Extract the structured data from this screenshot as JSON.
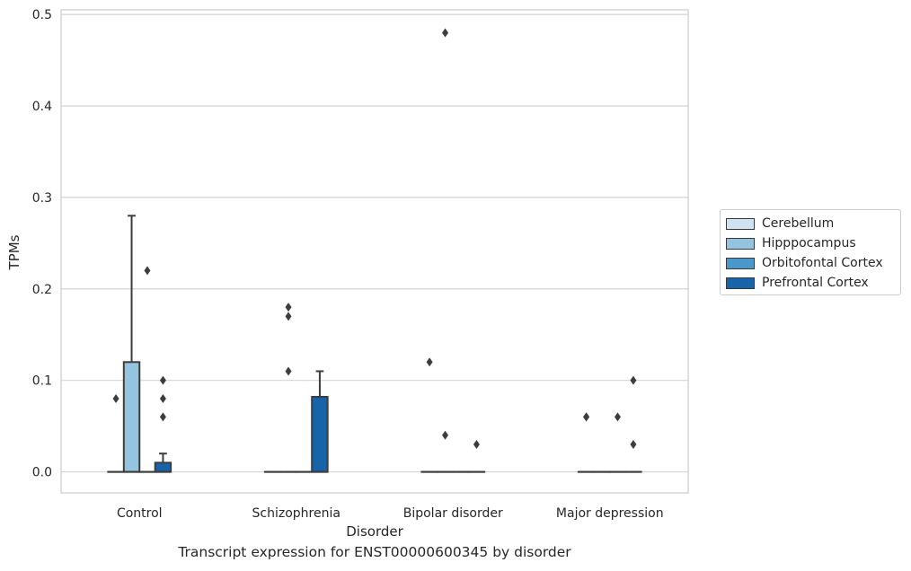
{
  "chart_data": {
    "type": "box",
    "title": "",
    "caption": "Transcript expression for ENST00000600345 by disorder",
    "xlabel": "Disorder",
    "ylabel": "TPMs",
    "ylim": [
      -0.023,
      0.505
    ],
    "yticks": [
      "0.0",
      "0.1",
      "0.2",
      "0.3",
      "0.4",
      "0.5"
    ],
    "ytick_values": [
      0,
      0.1,
      0.2,
      0.3,
      0.4,
      0.5
    ],
    "grid": "horizontal",
    "legend_position": "right",
    "categories": [
      "Control",
      "Schizophrenia",
      "Bipolar disorder",
      "Major depression"
    ],
    "series": [
      {
        "name": "Cerebellum",
        "color": "#d0e1f2",
        "boxes": [
          {
            "q1": 0,
            "median": 0,
            "q3": 0,
            "whisker_low": 0,
            "whisker_high": 0,
            "outliers": [
              0.08
            ]
          },
          {
            "q1": 0,
            "median": 0,
            "q3": 0,
            "whisker_low": 0,
            "whisker_high": 0,
            "outliers": []
          },
          {
            "q1": 0,
            "median": 0,
            "q3": 0,
            "whisker_low": 0,
            "whisker_high": 0,
            "outliers": [
              0.12
            ]
          },
          {
            "q1": 0,
            "median": 0,
            "q3": 0,
            "whisker_low": 0,
            "whisker_high": 0,
            "outliers": [
              0.06,
              0.06
            ]
          }
        ]
      },
      {
        "name": "Hipppocampus",
        "color": "#94c4df",
        "boxes": [
          {
            "q1": 0,
            "median": 0,
            "q3": 0.12,
            "whisker_low": 0,
            "whisker_high": 0.28,
            "outliers": []
          },
          {
            "q1": 0,
            "median": 0,
            "q3": 0,
            "whisker_low": 0,
            "whisker_high": 0,
            "outliers": [
              0.18,
              0.17,
              0.11
            ]
          },
          {
            "q1": 0,
            "median": 0,
            "q3": 0,
            "whisker_low": 0,
            "whisker_high": 0,
            "outliers": [
              0.48,
              0.04
            ]
          },
          {
            "q1": 0,
            "median": 0,
            "q3": 0,
            "whisker_low": 0,
            "whisker_high": 0,
            "outliers": []
          }
        ]
      },
      {
        "name": "Orbitofontal Cortex",
        "color": "#4a98c9",
        "boxes": [
          {
            "q1": 0,
            "median": 0,
            "q3": 0,
            "whisker_low": 0,
            "whisker_high": 0,
            "outliers": [
              0.22
            ]
          },
          {
            "q1": 0,
            "median": 0,
            "q3": 0,
            "whisker_low": 0,
            "whisker_high": 0,
            "outliers": []
          },
          {
            "q1": 0,
            "median": 0,
            "q3": 0,
            "whisker_low": 0,
            "whisker_high": 0,
            "outliers": []
          },
          {
            "q1": 0,
            "median": 0,
            "q3": 0,
            "whisker_low": 0,
            "whisker_high": 0,
            "outliers": [
              0.06
            ]
          }
        ]
      },
      {
        "name": "Prefrontal Cortex",
        "color": "#1764ab",
        "boxes": [
          {
            "q1": 0,
            "median": 0,
            "q3": 0.01,
            "whisker_low": 0,
            "whisker_high": 0.02,
            "outliers": [
              0.1,
              0.08,
              0.06
            ]
          },
          {
            "q1": 0,
            "median": 0,
            "q3": 0.082,
            "whisker_low": 0,
            "whisker_high": 0.11,
            "outliers": []
          },
          {
            "q1": 0,
            "median": 0,
            "q3": 0,
            "whisker_low": 0,
            "whisker_high": 0,
            "outliers": [
              0.03
            ]
          },
          {
            "q1": 0,
            "median": 0,
            "q3": 0,
            "whisker_low": 0,
            "whisker_high": 0,
            "outliers": [
              0.1,
              0.03
            ]
          }
        ]
      }
    ]
  }
}
